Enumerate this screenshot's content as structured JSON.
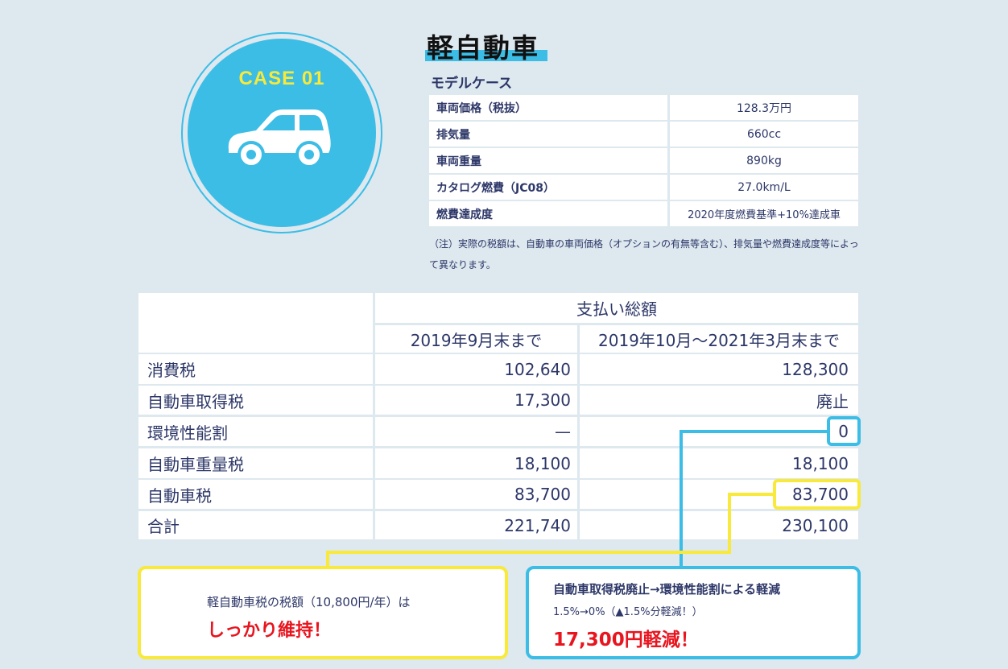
{
  "badge": {
    "label": "CASE 01",
    "icon": "car-icon"
  },
  "title": "軽自動車",
  "model_case": {
    "heading": "モデルケース",
    "rows": [
      {
        "label": "車両価格（税抜）",
        "value": "128.3万円"
      },
      {
        "label": "排気量",
        "value": "660cc"
      },
      {
        "label": "車両重量",
        "value": "890kg"
      },
      {
        "label": "カタログ燃費（JC08）",
        "value": "27.0km/L"
      },
      {
        "label": "燃費達成度",
        "value": "2020年度燃費基準+10%達成車"
      }
    ],
    "note": "（注）実際の税額は、自動車の車両価格（オプションの有無等含む）、排気量や燃費達成度等によって異なります。"
  },
  "payment_table": {
    "group_header": "支払い総額",
    "columns": [
      "2019年9月末まで",
      "2019年10月〜2021年3月末まで"
    ],
    "rows": [
      {
        "label": "消費税",
        "before": "102,640",
        "after": "128,300"
      },
      {
        "label": "自動車取得税",
        "before": "17,300",
        "after": "廃止"
      },
      {
        "label": "環境性能割",
        "before": "—",
        "after": "0"
      },
      {
        "label": "自動車重量税",
        "before": "18,100",
        "after": "18,100"
      },
      {
        "label": "自動車税",
        "before": "83,700",
        "after": "83,700"
      },
      {
        "label": "合計",
        "before": "221,740",
        "after": "230,100"
      }
    ]
  },
  "callouts": {
    "yellow": {
      "text": "軽自動車税の税額（10,800円/年）は",
      "emphasis": "しっかり維持！"
    },
    "blue": {
      "title": "自動車取得税廃止→環境性能割による軽減",
      "detail": "1.5%→0%（▲1.5%分軽減！）",
      "emphasis": "17,300円軽減！"
    }
  },
  "colors": {
    "background": "#dde8ef",
    "blue": "#3bbde6",
    "yellow": "#f8e93a",
    "navy": "#2d3768",
    "red": "#e8141e"
  }
}
